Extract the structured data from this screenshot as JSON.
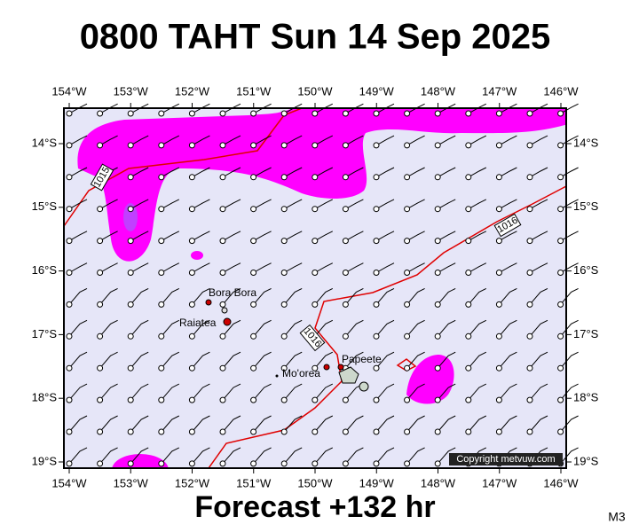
{
  "header": {
    "title": "0800 TAHT Sun 14 Sep 2025"
  },
  "map": {
    "lon_labels": [
      "154°W",
      "153°W",
      "152°W",
      "151°W",
      "150°W",
      "149°W",
      "148°W",
      "147°W",
      "146°W"
    ],
    "lat_labels": [
      "14°S",
      "15°S",
      "16°S",
      "17°S",
      "18°S",
      "19°S"
    ],
    "places": [
      "Bora Bora",
      "Raiatea",
      "Mo'orea",
      "Papeete"
    ],
    "isobar_labels": [
      "1015",
      "1016",
      "1016"
    ],
    "copyright": "Copyright metvuw.com"
  },
  "footer": {
    "caption": "Forecast +132 hr",
    "model": "M3"
  }
}
